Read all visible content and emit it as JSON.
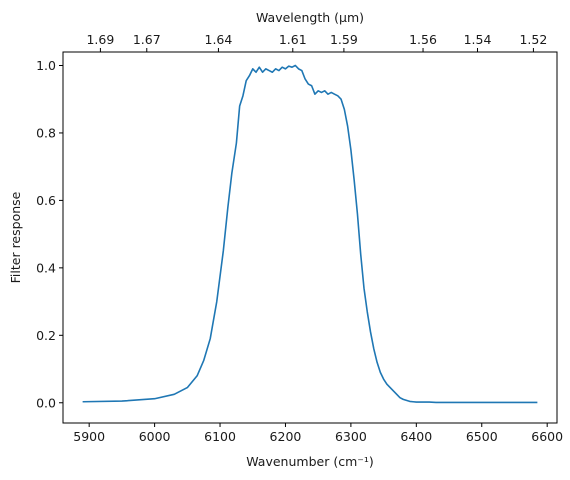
{
  "chart_data": {
    "type": "line",
    "title": "",
    "xlabel": "Wavenumber (cm⁻¹)",
    "ylabel": "Filter response",
    "top_xlabel": "Wavelength (μm)",
    "xlim": [
      5860,
      6615
    ],
    "ylim": [
      -0.06,
      1.04
    ],
    "x_ticks": [
      5900,
      6000,
      6100,
      6200,
      6300,
      6400,
      6500,
      6600
    ],
    "x_tick_labels": [
      "5900",
      "6000",
      "6100",
      "6200",
      "6300",
      "6400",
      "6500",
      "6600"
    ],
    "y_ticks": [
      0.0,
      0.2,
      0.4,
      0.6,
      0.8,
      1.0
    ],
    "y_tick_labels": [
      "0.0",
      "0.2",
      "0.4",
      "0.6",
      "0.8",
      "1.0"
    ],
    "top_ticks_wavelength_um": [
      1.69,
      1.67,
      1.64,
      1.61,
      1.59,
      1.56,
      1.54,
      1.52
    ],
    "top_tick_labels": [
      "1.69",
      "1.67",
      "1.64",
      "1.61",
      "1.59",
      "1.56",
      "1.54",
      "1.52"
    ],
    "grid": false,
    "legend": "none",
    "series": [
      {
        "color": "#1f77b4",
        "x": [
          5890,
          5950,
          6000,
          6030,
          6050,
          6065,
          6075,
          6085,
          6095,
          6105,
          6112,
          6118,
          6125,
          6130,
          6135,
          6140,
          6145,
          6150,
          6155,
          6160,
          6165,
          6170,
          6175,
          6180,
          6185,
          6190,
          6195,
          6200,
          6205,
          6210,
          6215,
          6220,
          6225,
          6230,
          6235,
          6240,
          6245,
          6250,
          6255,
          6260,
          6265,
          6270,
          6275,
          6280,
          6285,
          6290,
          6295,
          6300,
          6305,
          6310,
          6315,
          6320,
          6325,
          6330,
          6335,
          6340,
          6345,
          6350,
          6355,
          6360,
          6365,
          6370,
          6375,
          6380,
          6385,
          6390,
          6395,
          6400,
          6410,
          6420,
          6430,
          6450,
          6480,
          6520,
          6585
        ],
        "y": [
          0.003,
          0.005,
          0.012,
          0.025,
          0.045,
          0.08,
          0.125,
          0.19,
          0.3,
          0.45,
          0.58,
          0.68,
          0.77,
          0.88,
          0.91,
          0.955,
          0.97,
          0.99,
          0.98,
          0.995,
          0.98,
          0.99,
          0.985,
          0.98,
          0.99,
          0.985,
          0.995,
          0.99,
          0.998,
          0.995,
          1.0,
          0.99,
          0.985,
          0.96,
          0.945,
          0.94,
          0.915,
          0.925,
          0.92,
          0.925,
          0.915,
          0.92,
          0.915,
          0.91,
          0.9,
          0.87,
          0.82,
          0.75,
          0.66,
          0.56,
          0.44,
          0.34,
          0.27,
          0.21,
          0.16,
          0.12,
          0.09,
          0.07,
          0.055,
          0.045,
          0.035,
          0.025,
          0.015,
          0.01,
          0.007,
          0.004,
          0.003,
          0.002,
          0.002,
          0.002,
          0.001,
          0.001,
          0.001,
          0.001,
          0.001
        ]
      }
    ]
  }
}
